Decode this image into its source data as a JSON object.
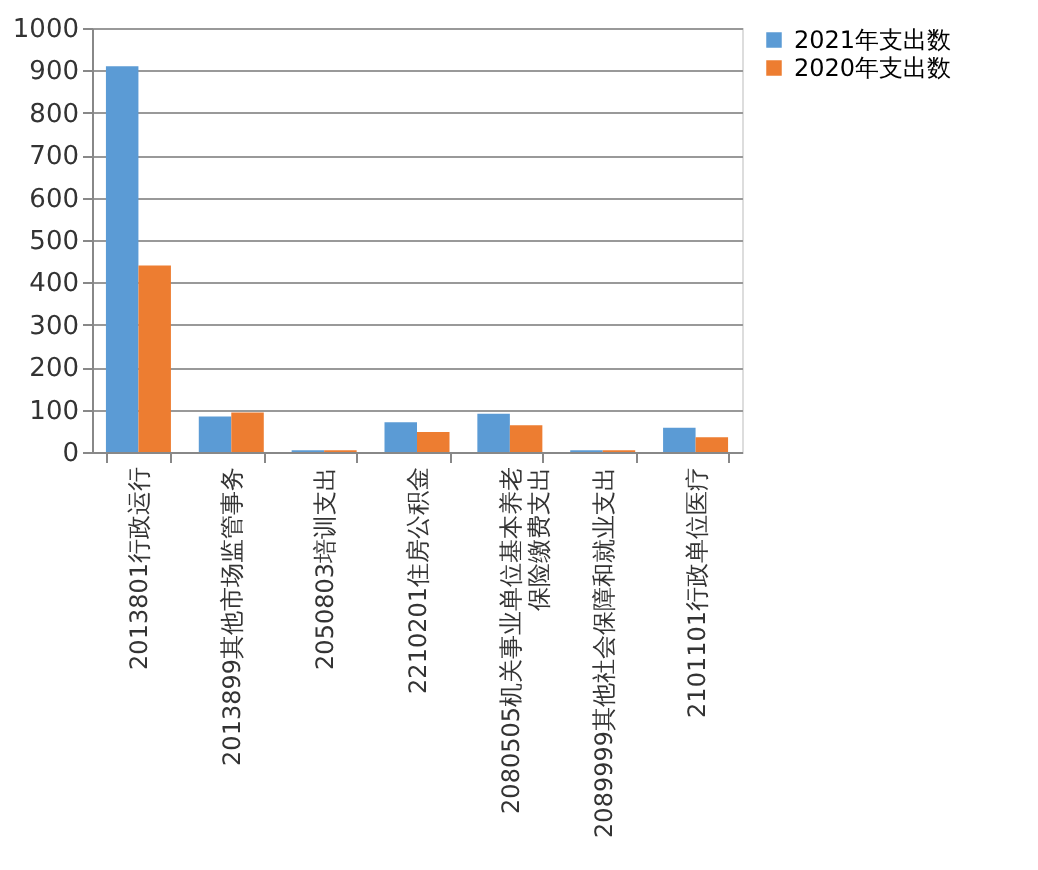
{
  "chart_data": {
    "type": "bar",
    "categories": [
      "2013801行政运行",
      "2013899其他市场监管事务",
      "2050803培训支出",
      "2210201住房公积金",
      "2080505机关事业单位基本养老保险缴费支出",
      "2089999其他社会保障和就业支出",
      "2101101行政单位医疗"
    ],
    "series": [
      {
        "name": "2021年支出数",
        "color": "#5b9bd5",
        "values": [
          910,
          84,
          4,
          70,
          90,
          4,
          57
        ]
      },
      {
        "name": "2020年支出数",
        "color": "#ed7d31",
        "values": [
          440,
          93,
          4,
          47,
          63,
          4,
          35
        ]
      }
    ],
    "ylim": [
      0,
      1000
    ],
    "yticks": [
      0,
      100,
      200,
      300,
      400,
      500,
      600,
      700,
      800,
      900,
      1000
    ],
    "grid": "y",
    "legend": "right"
  }
}
